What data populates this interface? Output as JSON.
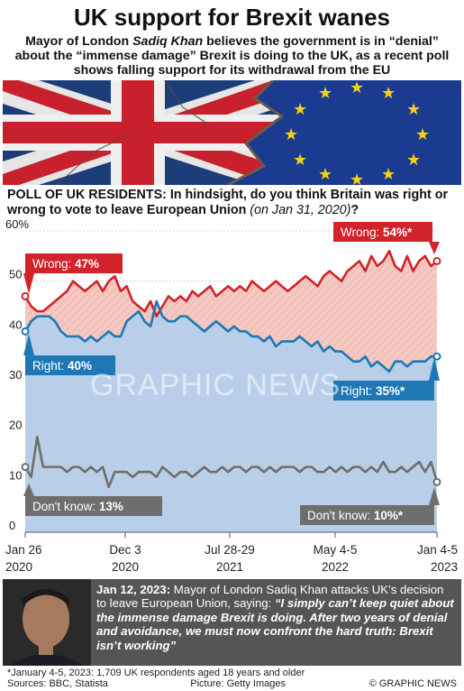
{
  "title": "UK support for Brexit wanes",
  "subtitle_pre": "Mayor of London ",
  "subtitle_name": "Sadiq Khan",
  "subtitle_post": " believes the government is in “denial” about the “immense damage” Brexit is doing to the UK, as a recent poll shows falling support for its withdrawal from the EU",
  "question_main": "POLL OF UK RESIDENTS: In hindsight, do you think Britain was right or wrong to vote to leave European Union",
  "question_date": "(on Jan 31, 2020)",
  "question_end": "?",
  "labels": {
    "wrong_start": "Wrong: ",
    "wrong_start_val": "47%",
    "wrong_end": "Wrong: ",
    "wrong_end_val": "54%*",
    "right_start": "Right: ",
    "right_start_val": "40%",
    "right_end": "Right: ",
    "right_end_val": "35%*",
    "dk_start": "Don't know: ",
    "dk_start_val": "13%",
    "dk_end": "Don't know: ",
    "dk_end_val": "10%*"
  },
  "quote": {
    "date": "Jan 12, 2023:",
    "lead": " Mayor of London Sadiq Khan attacks UK’s decision to leave European Union, saying: ",
    "text": "“I simply can’t keep quiet about the immense damage Brexit is doing. After two years of denial and avoidance, we must now confront the hard truth: Brexit isn’t working”"
  },
  "footnote": "*January 4-5, 2023: 1,709 UK respondents aged 18 years and older",
  "sources": "Sources: BBC, Statista",
  "picture": "Picture: Getty Images",
  "copyright": "© GRAPHIC NEWS",
  "watermark": "GRAPHIC NEWS",
  "colors": {
    "wrong": "#d2232a",
    "right": "#1f78b4",
    "dk": "#6e6e6e",
    "right_fill": "#b9cfe9",
    "wrong_fill": "#f5c9c2"
  },
  "chart_data": {
    "type": "line",
    "ylim": [
      0,
      60
    ],
    "yticks": [
      "0",
      "10",
      "20",
      "30",
      "40",
      "50",
      "60%"
    ],
    "xticks": [
      {
        "top": "Jan 26",
        "bottom": "2020"
      },
      {
        "top": "Dec 3",
        "bottom": "2020"
      },
      {
        "top": "Jul 28-29",
        "bottom": "2021"
      },
      {
        "top": "May 4-5",
        "bottom": "2022"
      },
      {
        "top": "Jan 4-5",
        "bottom": "2023"
      }
    ],
    "series": [
      {
        "name": "Wrong",
        "values": [
          47,
          45,
          44,
          44,
          45,
          46,
          47,
          48,
          50,
          49,
          48,
          49,
          50,
          48,
          50,
          51,
          48,
          49,
          46,
          45,
          44,
          46,
          43,
          45,
          47,
          46,
          47,
          46,
          48,
          47,
          48,
          49,
          47,
          48,
          49,
          48,
          49,
          48,
          50,
          49,
          48,
          49,
          50,
          49,
          48,
          49,
          50,
          51,
          50,
          49,
          51,
          52,
          51,
          50,
          52,
          53,
          54,
          52,
          55,
          53,
          54,
          56,
          53,
          52,
          55,
          52,
          54,
          55,
          53,
          54
        ]
      },
      {
        "name": "Right",
        "values": [
          40,
          42,
          43,
          43,
          43,
          42,
          40,
          39,
          39,
          39,
          38,
          39,
          38,
          39,
          40,
          39,
          39,
          42,
          43,
          44,
          42,
          41,
          46,
          43,
          42,
          42,
          43,
          43,
          42,
          41,
          40,
          41,
          42,
          41,
          40,
          41,
          40,
          40,
          39,
          39,
          38,
          39,
          37,
          38,
          38,
          38,
          39,
          38,
          37,
          38,
          36,
          37,
          36,
          36,
          35,
          34,
          34,
          35,
          33,
          34,
          33,
          32,
          34,
          34,
          33,
          34,
          34,
          34,
          35,
          35
        ]
      },
      {
        "name": "Don't know",
        "values": [
          13,
          11,
          19,
          13,
          13,
          13,
          13,
          12,
          13,
          13,
          12,
          13,
          12,
          13,
          9,
          12,
          12,
          12,
          11,
          12,
          12,
          12,
          11,
          13,
          12,
          11,
          12,
          12,
          11,
          12,
          13,
          12,
          12,
          13,
          12,
          13,
          13,
          12,
          13,
          13,
          12,
          13,
          12,
          13,
          13,
          13,
          12,
          13,
          13,
          12,
          12,
          13,
          12,
          13,
          12,
          13,
          13,
          12,
          13,
          12,
          14,
          12,
          12,
          13,
          12,
          13,
          14,
          12,
          14,
          10
        ]
      }
    ]
  }
}
